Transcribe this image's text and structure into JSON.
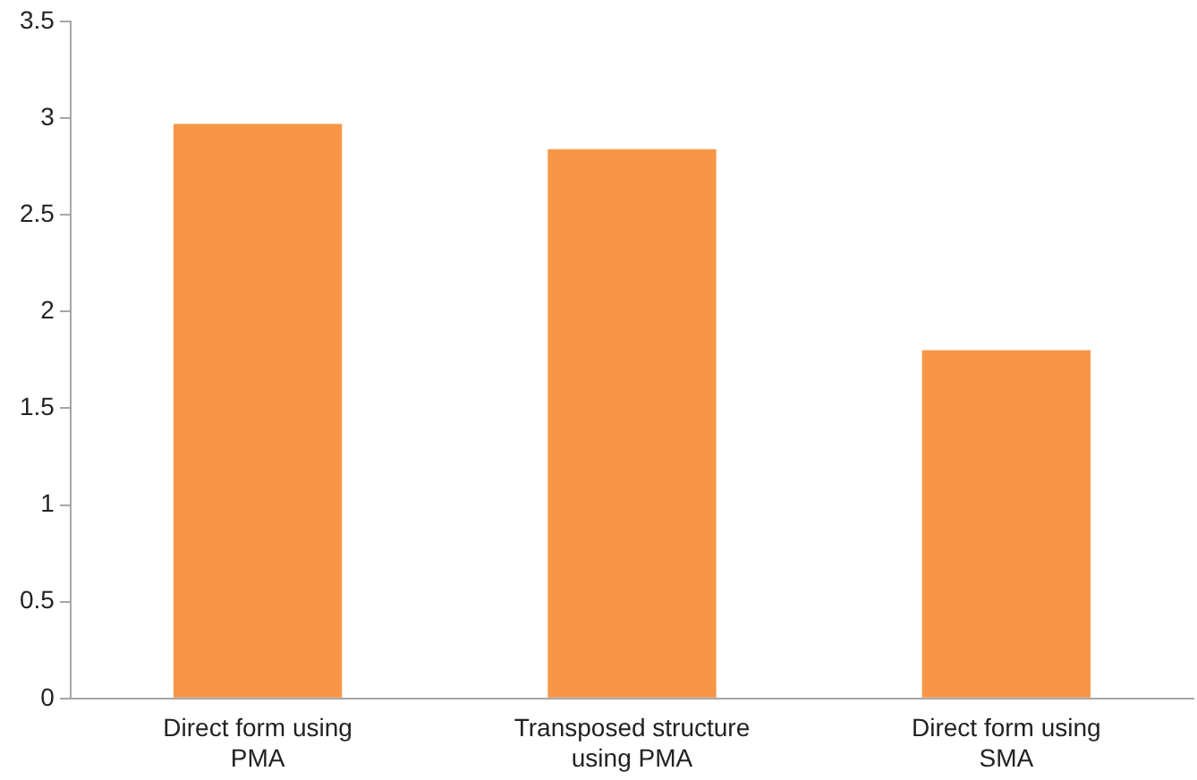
{
  "chart_data": {
    "type": "bar",
    "categories": [
      "Direct form using PMA",
      "Transposed structure using PMA",
      "Direct form using SMA"
    ],
    "values": [
      2.97,
      2.84,
      1.8
    ],
    "color": "#f79646",
    "ylim": [
      0,
      3.5
    ],
    "yticks": [
      0,
      0.5,
      1,
      1.5,
      2,
      2.5,
      3,
      3.5
    ],
    "grid": false,
    "legend": false
  }
}
